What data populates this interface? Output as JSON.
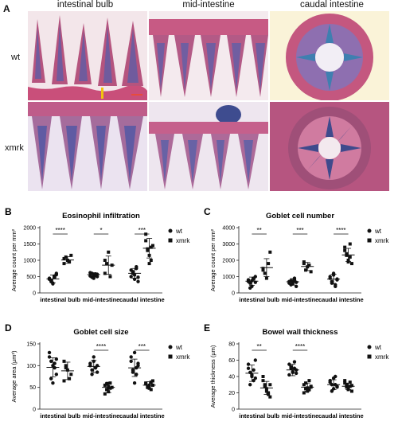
{
  "panel_A": {
    "letter": "A",
    "columns": [
      "intestinal bulb",
      "mid-intestine",
      "caudal intestine"
    ],
    "rows": [
      "wt",
      "xmrk"
    ]
  },
  "chart_data": [
    {
      "panel": "B",
      "type": "scatter",
      "title": "Eosinophil infiltration",
      "ylabel": "Average count per mm²",
      "ylim": [
        0,
        2000
      ],
      "yticks": [
        "0",
        "500",
        "1000",
        "1500",
        "2000"
      ],
      "categories": [
        "intestinal bulb",
        "mid-intestine",
        "caudal intestine"
      ],
      "legend": [
        "wt",
        "xmrk"
      ],
      "significance": [
        "****",
        "*",
        "***"
      ],
      "series": [
        {
          "name": "wt",
          "points": [
            [
              450,
              380,
              300,
              520,
              600,
              420,
              350,
              280,
              480,
              560
            ],
            [
              520,
              600,
              450,
              580,
              500,
              620,
              480,
              550,
              530,
              570
            ],
            [
              500,
              650,
              420,
              800,
              350,
              700,
              600,
              550,
              750,
              480
            ]
          ],
          "mean": [
            430,
            560,
            600
          ],
          "sd": [
            120,
            60,
            150
          ]
        },
        {
          "name": "xmrk",
          "points": [
            [
              900,
              1100,
              1000,
              950,
              1150,
              1050
            ],
            [
              600,
              900,
              1250,
              500,
              850,
              1000
            ],
            [
              1600,
              1300,
              900,
              1000,
              1450,
              1800,
              1350,
              1150,
              1400
            ]
          ],
          "mean": [
            1010,
            850,
            1370
          ],
          "sd": [
            100,
            280,
            300
          ]
        }
      ]
    },
    {
      "panel": "C",
      "type": "scatter",
      "title": "Goblet cell number",
      "ylabel": "Average count per mm²",
      "ylim": [
        0,
        4000
      ],
      "yticks": [
        "0",
        "1000",
        "2000",
        "3000",
        "4000"
      ],
      "categories": [
        "intestinal bulb",
        "mid-intestine",
        "caudal intestine"
      ],
      "legend": [
        "wt",
        "xmrk"
      ],
      "significance": [
        "**",
        "***",
        "****"
      ],
      "series": [
        {
          "name": "wt",
          "points": [
            [
              800,
              600,
              400,
              900,
              1000,
              700,
              300,
              750,
              850,
              650
            ],
            [
              700,
              500,
              650,
              800,
              400,
              600,
              750,
              550,
              900,
              650
            ],
            [
              900,
              600,
              1200,
              400,
              800,
              1000,
              700,
              1100,
              500,
              850
            ]
          ],
          "mean": [
            720,
            680,
            850
          ],
          "sd": [
            250,
            200,
            300
          ]
        },
        {
          "name": "xmrk",
          "points": [
            [
              1500,
              1200,
              900,
              1800,
              2500,
              1400
            ],
            [
              1800,
              1400,
              1600,
              1700,
              1300,
              1900
            ],
            [
              2800,
              2400,
              2000,
              2200,
              1800,
              2600,
              2300,
              1900,
              3000
            ]
          ],
          "mean": [
            1550,
            1620,
            2330
          ],
          "sd": [
            550,
            250,
            400
          ]
        }
      ]
    },
    {
      "panel": "D",
      "type": "scatter",
      "title": "Goblet cell size",
      "ylabel": "Average area (µm²)",
      "ylim": [
        0,
        150
      ],
      "yticks": [
        "0",
        "50",
        "100",
        "150"
      ],
      "categories": [
        "intestinal bulb",
        "mid-intestine",
        "caudal intestine"
      ],
      "legend": [
        "wt",
        "xmrk"
      ],
      "significance": [
        "",
        "****",
        "***"
      ],
      "series": [
        {
          "name": "wt",
          "points": [
            [
              120,
              110,
              100,
              95,
              80,
              130,
              70,
              60,
              105,
              115
            ],
            [
              100,
              90,
              110,
              95,
              85,
              105,
              80,
              120,
              95,
              100
            ],
            [
              110,
              90,
              130,
              80,
              100,
              120,
              85,
              60,
              95,
              105
            ]
          ],
          "mean": [
            96,
            98,
            95
          ],
          "sd": [
            22,
            14,
            20
          ]
        },
        {
          "name": "xmrk",
          "points": [
            [
              110,
              100,
              90,
              70,
              80,
              65,
              95
            ],
            [
              55,
              45,
              40,
              60,
              50,
              35,
              58,
              52,
              48
            ],
            [
              60,
              50,
              55,
              45,
              65,
              58,
              52,
              48,
              62,
              55
            ]
          ],
          "mean": [
            88,
            50,
            55
          ],
          "sd": [
            20,
            12,
            8
          ]
        }
      ]
    },
    {
      "panel": "E",
      "type": "scatter",
      "title": "Bowel wall thickness",
      "ylabel": "Average thickness (µm)",
      "ylim": [
        0,
        80
      ],
      "yticks": [
        "0",
        "20",
        "40",
        "60",
        "80"
      ],
      "categories": [
        "intestinal bulb",
        "mid-intestine",
        "caudal intestine"
      ],
      "legend": [
        "wt",
        "xmrk"
      ],
      "significance": [
        "**",
        "****",
        ""
      ],
      "series": [
        {
          "name": "wt",
          "points": [
            [
              55,
              45,
              40,
              35,
              60,
              50,
              30,
              42,
              48,
              38
            ],
            [
              55,
              50,
              45,
              58,
              48,
              42,
              52,
              46,
              50,
              44
            ],
            [
              35,
              30,
              25,
              40,
              28,
              33,
              22,
              38,
              30,
              27
            ]
          ],
          "mean": [
            44,
            48,
            30
          ],
          "sd": [
            10,
            7,
            6
          ]
        },
        {
          "name": "xmrk",
          "points": [
            [
              40,
              30,
              25,
              20,
              15,
              35,
              28,
              22,
              18,
              30
            ],
            [
              30,
              25,
              22,
              35,
              28,
              20,
              32,
              26,
              24,
              27
            ],
            [
              35,
              30,
              25,
              28,
              22,
              32,
              27,
              24,
              33,
              29
            ]
          ],
          "mean": [
            26,
            27,
            28
          ],
          "sd": [
            8,
            5,
            4
          ]
        }
      ]
    }
  ]
}
